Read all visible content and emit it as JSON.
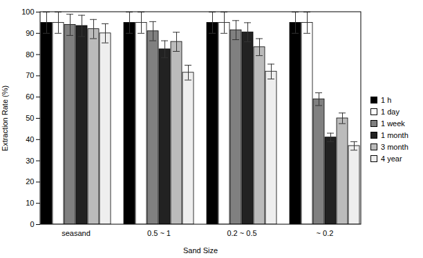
{
  "chart_data": {
    "type": "bar",
    "xlabel": "Sand Size",
    "ylabel": "Extraction Rate (%)",
    "categories": [
      "seasand",
      "0.5 ~ 1",
      "0.2 ~ 0.5",
      "~ 0.2"
    ],
    "series": [
      {
        "name": "1 h",
        "color": "#000000",
        "values": [
          95,
          95,
          95,
          95
        ],
        "errors": [
          5,
          5,
          5,
          5
        ]
      },
      {
        "name": "1 day",
        "color": "#ffffff",
        "values": [
          95,
          95,
          95,
          95
        ],
        "errors": [
          5,
          5,
          5,
          5
        ]
      },
      {
        "name": "1 week",
        "color": "#808080",
        "values": [
          94,
          91,
          91.5,
          59
        ],
        "errors": [
          5,
          4.5,
          4.5,
          3
        ]
      },
      {
        "name": "1 month",
        "color": "#222222",
        "values": [
          93.5,
          82.5,
          90.5,
          41
        ],
        "errors": [
          5,
          4,
          4.5,
          2
        ]
      },
      {
        "name": "3 month",
        "color": "#bbbbbb",
        "values": [
          92,
          86,
          83.5,
          50
        ],
        "errors": [
          4.5,
          4.5,
          4,
          2.5
        ]
      },
      {
        "name": "4 year",
        "color": "#eeeeee",
        "values": [
          90,
          71.5,
          72,
          37
        ],
        "errors": [
          4.5,
          3.5,
          3.5,
          2
        ]
      }
    ],
    "ylim": [
      0,
      100
    ],
    "yticks": [
      0,
      10,
      20,
      30,
      40,
      50,
      60,
      70,
      80,
      90,
      100
    ],
    "grid": false,
    "legend": "right"
  }
}
